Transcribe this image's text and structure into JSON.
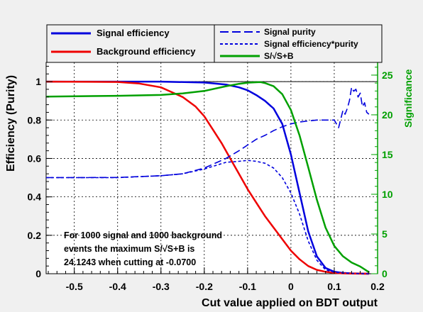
{
  "chart_data": {
    "type": "line",
    "xlabel": "Cut value applied on BDT output",
    "ylabel": "Efficiency (Purity)",
    "ylabel_right": "Significance",
    "xlim": [
      -0.565,
      0.2
    ],
    "ylim": [
      0,
      1.1
    ],
    "ylim_right": [
      0,
      26.6
    ],
    "x_ticks": [
      -0.5,
      -0.4,
      -0.3,
      -0.2,
      -0.1,
      0,
      0.1,
      0.2
    ],
    "x_tick_labels": [
      "-0.5",
      "-0.4",
      "-0.3",
      "-0.2",
      "-0.1",
      "0",
      "0.1",
      "0.2"
    ],
    "y_ticks": [
      0,
      0.2,
      0.4,
      0.6,
      0.8,
      1
    ],
    "y_tick_labels": [
      "0",
      "0.2",
      "0.4",
      "0.6",
      "0.8",
      "1"
    ],
    "y_right_ticks": [
      0,
      5,
      10,
      15,
      20,
      25
    ],
    "y_right_tick_labels": [
      "0",
      "5",
      "10",
      "15",
      "20",
      "25"
    ],
    "grid": true,
    "legend": [
      {
        "name": "Signal efficiency",
        "color": "#0000dd",
        "style": "solid"
      },
      {
        "name": "Background efficiency",
        "color": "#ee0000",
        "style": "solid"
      },
      {
        "name": "Signal purity",
        "color": "#0000dd",
        "style": "dashed"
      },
      {
        "name": "Signal efficiency*purity",
        "color": "#0000dd",
        "style": "dotted"
      },
      {
        "name": "S/√S+B",
        "color": "#00a000",
        "style": "solid"
      }
    ],
    "annotation_lines": [
      "For 1000 signal and 1000 background",
      "events the maximum S/√S+B is",
      "24.1243 when cutting at -0.0700"
    ],
    "series": [
      {
        "name": "Signal efficiency",
        "axis": "left",
        "color": "#0000dd",
        "x": [
          -0.565,
          -0.4,
          -0.3,
          -0.2,
          -0.15,
          -0.12,
          -0.1,
          -0.08,
          -0.06,
          -0.04,
          -0.02,
          0,
          0.02,
          0.04,
          0.06,
          0.08,
          0.1,
          0.12,
          0.14,
          0.16,
          0.18
        ],
        "y": [
          1,
          1,
          1,
          0.995,
          0.985,
          0.97,
          0.955,
          0.93,
          0.9,
          0.86,
          0.78,
          0.62,
          0.42,
          0.22,
          0.09,
          0.03,
          0.01,
          0.004,
          0.002,
          0.001,
          0
        ]
      },
      {
        "name": "Background efficiency",
        "axis": "left",
        "color": "#ee0000",
        "x": [
          -0.565,
          -0.4,
          -0.35,
          -0.3,
          -0.28,
          -0.25,
          -0.22,
          -0.2,
          -0.18,
          -0.16,
          -0.14,
          -0.12,
          -0.1,
          -0.08,
          -0.06,
          -0.04,
          -0.02,
          0,
          0.02,
          0.04,
          0.06,
          0.08,
          0.1,
          0.12,
          0.14,
          0.18
        ],
        "y": [
          1,
          0.998,
          0.99,
          0.97,
          0.95,
          0.92,
          0.87,
          0.82,
          0.75,
          0.68,
          0.6,
          0.52,
          0.44,
          0.37,
          0.3,
          0.24,
          0.18,
          0.12,
          0.075,
          0.04,
          0.02,
          0.01,
          0.004,
          0.002,
          0.001,
          0
        ]
      },
      {
        "name": "Signal purity",
        "axis": "left",
        "color": "#0000dd",
        "x": [
          -0.565,
          -0.4,
          -0.3,
          -0.25,
          -0.2,
          -0.15,
          -0.12,
          -0.1,
          -0.08,
          -0.06,
          -0.04,
          -0.02,
          0,
          0.02,
          0.04,
          0.06,
          0.08,
          0.1,
          0.11,
          0.12,
          0.125,
          0.13,
          0.135,
          0.14,
          0.145,
          0.15,
          0.155,
          0.16,
          0.165,
          0.17,
          0.175,
          0.18
        ],
        "y": [
          0.5,
          0.501,
          0.51,
          0.52,
          0.55,
          0.6,
          0.64,
          0.67,
          0.7,
          0.72,
          0.745,
          0.765,
          0.78,
          0.79,
          0.795,
          0.8,
          0.8,
          0.8,
          0.76,
          0.85,
          0.83,
          0.86,
          0.9,
          0.97,
          0.95,
          0.96,
          0.92,
          0.94,
          0.87,
          0.89,
          0.84,
          0.83
        ]
      },
      {
        "name": "Signal efficiency*purity",
        "axis": "left",
        "color": "#0000dd",
        "x": [
          -0.565,
          -0.4,
          -0.3,
          -0.25,
          -0.2,
          -0.15,
          -0.12,
          -0.1,
          -0.08,
          -0.06,
          -0.04,
          -0.02,
          0,
          0.02,
          0.04,
          0.06,
          0.08,
          0.1,
          0.12,
          0.15,
          0.18
        ],
        "y": [
          0.5,
          0.5,
          0.51,
          0.52,
          0.545,
          0.58,
          0.585,
          0.59,
          0.585,
          0.575,
          0.55,
          0.5,
          0.42,
          0.31,
          0.17,
          0.07,
          0.02,
          0.008,
          0.003,
          0.001,
          0
        ]
      },
      {
        "name": "S/√S+B",
        "axis": "right",
        "color": "#00a000",
        "x": [
          -0.565,
          -0.4,
          -0.3,
          -0.25,
          -0.2,
          -0.15,
          -0.12,
          -0.1,
          -0.08,
          -0.07,
          -0.06,
          -0.04,
          -0.02,
          0,
          0.02,
          0.04,
          0.06,
          0.08,
          0.1,
          0.12,
          0.14,
          0.16,
          0.18
        ],
        "y": [
          22.3,
          22.4,
          22.5,
          22.7,
          23.0,
          23.6,
          23.9,
          24.05,
          24.1,
          24.12,
          24.0,
          23.6,
          22.6,
          20.6,
          17.4,
          13.4,
          9.3,
          5.8,
          3.5,
          2.2,
          1.4,
          0.9,
          0.2
        ]
      }
    ]
  }
}
